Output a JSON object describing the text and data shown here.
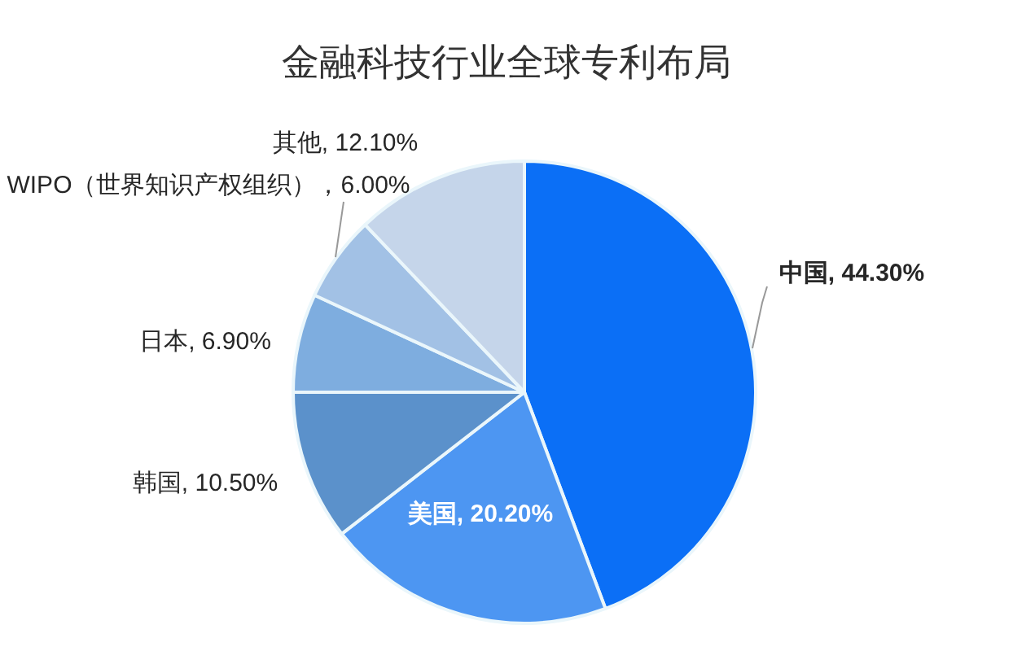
{
  "chart_data": {
    "type": "pie",
    "title": "金融科技行业全球专利布局",
    "categories": [
      "中国",
      "美国",
      "韩国",
      "日本",
      "WIPO（世界知识产权组织）",
      "其他"
    ],
    "values": [
      44.3,
      20.2,
      10.5,
      6.9,
      6.0,
      12.1
    ],
    "colors": [
      "#0b6ff6",
      "#4d96f2",
      "#5b91cb",
      "#7eaddf",
      "#a2c1e5",
      "#c5d5ea"
    ],
    "value_labels": [
      "44.30%",
      "20.20%",
      "10.50%",
      "6.90%",
      "6.00%",
      "12.10%"
    ]
  }
}
